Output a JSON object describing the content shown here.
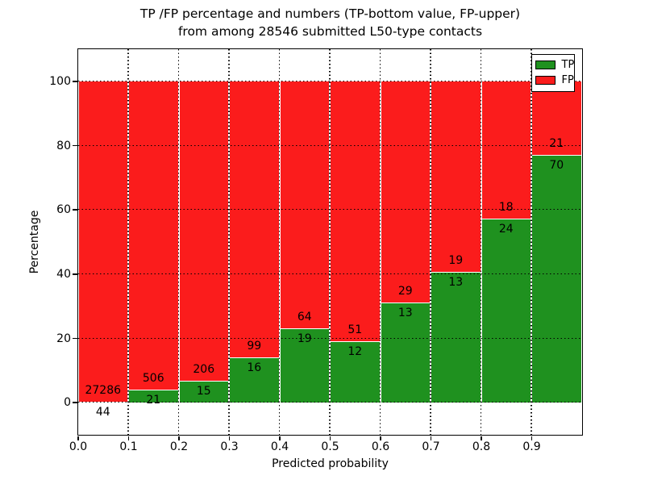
{
  "figure": {
    "background": "#ffffff",
    "title_line1": "TP /FP percentage and numbers (TP-bottom value, FP-upper)",
    "title_line2": "from among 28546 submitted L50-type contacts"
  },
  "legend": {
    "position": "upper right",
    "items": [
      {
        "label": "TP",
        "color": "#1f911f"
      },
      {
        "label": "FP",
        "color": "#fb1c1c"
      }
    ]
  },
  "chart_data": {
    "type": "bar",
    "stacked": true,
    "normalized_to": "100 percent per bin",
    "title": "TP /FP percentage and numbers (TP-bottom value, FP-upper)\nfrom among 28546 submitted L50-type contacts",
    "xlabel": "Predicted probability",
    "ylabel": "Percentage",
    "xlim": [
      0.0,
      1.0
    ],
    "ylim": [
      -10,
      110
    ],
    "grid": true,
    "gridstyle": "dotted-black",
    "legend_position": "upper right",
    "bin_start": [
      0.0,
      0.1,
      0.2,
      0.3,
      0.4,
      0.5,
      0.6,
      0.7,
      0.8,
      0.9
    ],
    "bin_width": 0.1,
    "xtick_labels": [
      "0.0",
      "0.1",
      "0.2",
      "0.3",
      "0.4",
      "0.5",
      "0.6",
      "0.7",
      "0.8",
      "0.9"
    ],
    "ytick_values": [
      0,
      20,
      40,
      60,
      80,
      100
    ],
    "total_contacts": 28546,
    "series": [
      {
        "name": "TP",
        "color": "#1f911f",
        "stack_position": "bottom",
        "counts": [
          44,
          21,
          15,
          16,
          19,
          12,
          13,
          13,
          24,
          70
        ]
      },
      {
        "name": "FP",
        "color": "#fb1c1c",
        "stack_position": "top",
        "counts": [
          27286,
          506,
          206,
          99,
          64,
          51,
          29,
          19,
          18,
          21
        ]
      }
    ],
    "tp_percent_of_bin": [
      0.16,
      3.98,
      6.79,
      13.91,
      22.89,
      19.05,
      30.95,
      40.63,
      57.14,
      76.92
    ],
    "fp_percent_of_bin": [
      99.84,
      96.02,
      93.21,
      86.09,
      77.11,
      80.95,
      69.05,
      59.37,
      42.86,
      23.08
    ]
  }
}
